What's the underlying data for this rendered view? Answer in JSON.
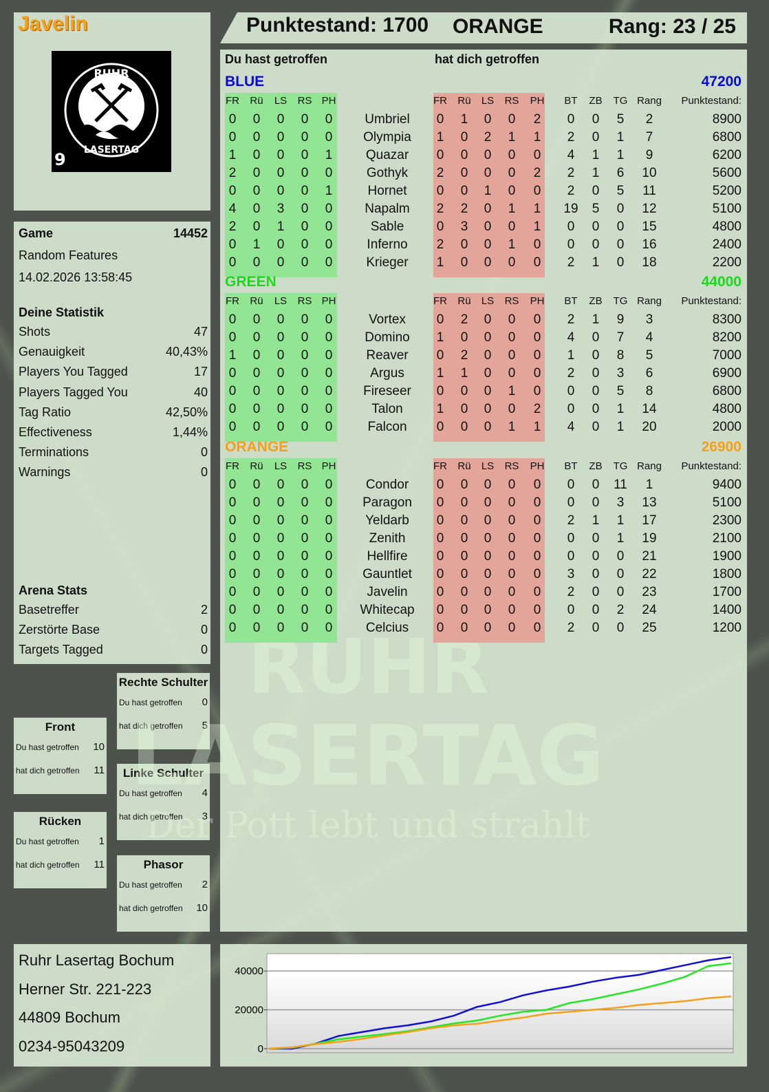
{
  "player": {
    "name": "Javelin",
    "logo_text": "RUHR LASERTAG",
    "logo_number": "9"
  },
  "header": {
    "score": "Punktestand: 1700",
    "team": "ORANGE",
    "rank": "Rang: 23 / 25"
  },
  "game": {
    "label": "Game",
    "id": "14452",
    "mode": "Random Features",
    "datetime": "14.02.2026 13:58:45"
  },
  "stats": {
    "title": "Deine Statistik",
    "items": [
      {
        "label": "Shots",
        "value": "47"
      },
      {
        "label": "Genauigkeit",
        "value": "40,43%"
      },
      {
        "label": "Players You Tagged",
        "value": "17"
      },
      {
        "label": "Players Tagged You",
        "value": "40"
      },
      {
        "label": "Tag Ratio",
        "value": "42,50%"
      },
      {
        "label": "Effectiveness",
        "value": "1,44%"
      },
      {
        "label": "Terminations",
        "value": "0"
      },
      {
        "label": "Warnings",
        "value": "0"
      }
    ]
  },
  "arena": {
    "title": "Arena Stats",
    "items": [
      {
        "label": "Basetreffer",
        "value": "2"
      },
      {
        "label": "Zerstörte Base",
        "value": "0"
      },
      {
        "label": "Targets Tagged",
        "value": "0"
      }
    ]
  },
  "zones": [
    {
      "title": "Rechte Schulter",
      "hit": "Du hast getroffen",
      "hit_v": "0",
      "got": "hat dich getroffen",
      "got_v": "5"
    },
    {
      "title": "Front",
      "hit": "Du hast getroffen",
      "hit_v": "10",
      "got": "hat dich getroffen",
      "got_v": "11"
    },
    {
      "title": "Linke Schulter",
      "hit": "Du hast getroffen",
      "hit_v": "4",
      "got": "hat dich getroffen",
      "got_v": "3"
    },
    {
      "title": "Rücken",
      "hit": "Du hast getroffen",
      "hit_v": "1",
      "got": "hat dich getroffen",
      "got_v": "11"
    },
    {
      "title": "Phasor",
      "hit": "Du hast getroffen",
      "hit_v": "2",
      "got": "hat dich getroffen",
      "got_v": "10"
    }
  ],
  "address": [
    "Ruhr Lasertag Bochum",
    "Herner Str. 221-223",
    "44809 Bochum",
    "0234-95043209"
  ],
  "main": {
    "you_hit": "Du hast getroffen",
    "hit_you": "hat dich getroffen",
    "columns": [
      "FR",
      "Rü",
      "LS",
      "RS",
      "PH",
      "FR",
      "Rü",
      "LS",
      "RS",
      "PH",
      "BT",
      "ZB",
      "TG",
      "Rang",
      "Punktestand:"
    ],
    "teams": [
      {
        "name": "BLUE",
        "total": "47200",
        "color": "#0a0ad8",
        "rows": [
          [
            "0",
            "0",
            "0",
            "0",
            "0",
            "Umbriel",
            "0",
            "1",
            "0",
            "0",
            "2",
            "0",
            "0",
            "5",
            "2",
            "8900"
          ],
          [
            "0",
            "0",
            "0",
            "0",
            "0",
            "Olympia",
            "1",
            "0",
            "2",
            "1",
            "1",
            "2",
            "0",
            "1",
            "7",
            "6800"
          ],
          [
            "1",
            "0",
            "0",
            "0",
            "1",
            "Quazar",
            "0",
            "0",
            "0",
            "0",
            "0",
            "4",
            "1",
            "1",
            "9",
            "6200"
          ],
          [
            "2",
            "0",
            "0",
            "0",
            "0",
            "Gothyk",
            "2",
            "0",
            "0",
            "0",
            "2",
            "2",
            "1",
            "6",
            "10",
            "5600"
          ],
          [
            "0",
            "0",
            "0",
            "0",
            "1",
            "Hornet",
            "0",
            "0",
            "1",
            "0",
            "0",
            "2",
            "0",
            "5",
            "11",
            "5200"
          ],
          [
            "4",
            "0",
            "3",
            "0",
            "0",
            "Napalm",
            "2",
            "2",
            "0",
            "1",
            "1",
            "19",
            "5",
            "0",
            "12",
            "5100"
          ],
          [
            "2",
            "0",
            "1",
            "0",
            "0",
            "Sable",
            "0",
            "3",
            "0",
            "0",
            "1",
            "0",
            "0",
            "0",
            "15",
            "4800"
          ],
          [
            "0",
            "1",
            "0",
            "0",
            "0",
            "Inferno",
            "2",
            "0",
            "0",
            "1",
            "0",
            "0",
            "0",
            "0",
            "16",
            "2400"
          ],
          [
            "0",
            "0",
            "0",
            "0",
            "0",
            "Krieger",
            "1",
            "0",
            "0",
            "0",
            "0",
            "2",
            "1",
            "0",
            "18",
            "2200"
          ]
        ]
      },
      {
        "name": "GREEN",
        "total": "44000",
        "color": "#1ed81e",
        "rows": [
          [
            "0",
            "0",
            "0",
            "0",
            "0",
            "Vortex",
            "0",
            "2",
            "0",
            "0",
            "0",
            "2",
            "1",
            "9",
            "3",
            "8300"
          ],
          [
            "0",
            "0",
            "0",
            "0",
            "0",
            "Domino",
            "1",
            "0",
            "0",
            "0",
            "0",
            "4",
            "0",
            "7",
            "4",
            "8200"
          ],
          [
            "1",
            "0",
            "0",
            "0",
            "0",
            "Reaver",
            "0",
            "2",
            "0",
            "0",
            "0",
            "1",
            "0",
            "8",
            "5",
            "7000"
          ],
          [
            "0",
            "0",
            "0",
            "0",
            "0",
            "Argus",
            "1",
            "1",
            "0",
            "0",
            "0",
            "2",
            "0",
            "3",
            "6",
            "6900"
          ],
          [
            "0",
            "0",
            "0",
            "0",
            "0",
            "Fireseer",
            "0",
            "0",
            "0",
            "1",
            "0",
            "0",
            "0",
            "5",
            "8",
            "6800"
          ],
          [
            "0",
            "0",
            "0",
            "0",
            "0",
            "Talon",
            "1",
            "0",
            "0",
            "0",
            "2",
            "0",
            "0",
            "1",
            "14",
            "4800"
          ],
          [
            "0",
            "0",
            "0",
            "0",
            "0",
            "Falcon",
            "0",
            "0",
            "0",
            "1",
            "1",
            "4",
            "0",
            "1",
            "20",
            "2000"
          ]
        ]
      },
      {
        "name": "ORANGE",
        "total": "26900",
        "color": "#f5a01a",
        "rows": [
          [
            "0",
            "0",
            "0",
            "0",
            "0",
            "Condor",
            "0",
            "0",
            "0",
            "0",
            "0",
            "0",
            "0",
            "11",
            "1",
            "9400"
          ],
          [
            "0",
            "0",
            "0",
            "0",
            "0",
            "Paragon",
            "0",
            "0",
            "0",
            "0",
            "0",
            "0",
            "0",
            "3",
            "13",
            "5100"
          ],
          [
            "0",
            "0",
            "0",
            "0",
            "0",
            "Yeldarb",
            "0",
            "0",
            "0",
            "0",
            "0",
            "2",
            "1",
            "1",
            "17",
            "2300"
          ],
          [
            "0",
            "0",
            "0",
            "0",
            "0",
            "Zenith",
            "0",
            "0",
            "0",
            "0",
            "0",
            "0",
            "0",
            "1",
            "19",
            "2100"
          ],
          [
            "0",
            "0",
            "0",
            "0",
            "0",
            "Hellfire",
            "0",
            "0",
            "0",
            "0",
            "0",
            "0",
            "0",
            "0",
            "21",
            "1900"
          ],
          [
            "0",
            "0",
            "0",
            "0",
            "0",
            "Gauntlet",
            "0",
            "0",
            "0",
            "0",
            "0",
            "3",
            "0",
            "0",
            "22",
            "1800"
          ],
          [
            "0",
            "0",
            "0",
            "0",
            "0",
            "Javelin",
            "0",
            "0",
            "0",
            "0",
            "0",
            "2",
            "0",
            "0",
            "23",
            "1700"
          ],
          [
            "0",
            "0",
            "0",
            "0",
            "0",
            "Whitecap",
            "0",
            "0",
            "0",
            "0",
            "0",
            "0",
            "0",
            "2",
            "24",
            "1400"
          ],
          [
            "0",
            "0",
            "0",
            "0",
            "0",
            "Celcius",
            "0",
            "0",
            "0",
            "0",
            "0",
            "2",
            "0",
            "0",
            "25",
            "1200"
          ]
        ]
      }
    ]
  },
  "watermark": {
    "line1": "RUHR",
    "line2": "LASERTAG",
    "slogan": "Der Pott lebt und strahlt"
  },
  "chart_data": {
    "type": "line",
    "ylim": [
      0,
      48000
    ],
    "yticks": [
      "0",
      "20000",
      "40000"
    ],
    "x": [
      0,
      1,
      2,
      3,
      4,
      5,
      6,
      7,
      8,
      9,
      10,
      11,
      12,
      13,
      14,
      15,
      16,
      17,
      18,
      19,
      20
    ],
    "series": [
      {
        "color": "#1010d8",
        "values": [
          0,
          0,
          2500,
          6500,
          8500,
          10500,
          12000,
          14000,
          17000,
          21500,
          24000,
          27500,
          30000,
          32000,
          34500,
          36500,
          38000,
          40500,
          43000,
          45500,
          47200
        ]
      },
      {
        "color": "#22e822",
        "values": [
          0,
          500,
          2500,
          4800,
          6200,
          7500,
          9000,
          11000,
          13000,
          14500,
          17000,
          19000,
          20000,
          23500,
          25500,
          28000,
          30500,
          33500,
          37000,
          42500,
          44000
        ]
      },
      {
        "color": "#f5a01a",
        "values": [
          0,
          700,
          2300,
          3500,
          5000,
          6800,
          8500,
          10500,
          12000,
          12800,
          14500,
          16000,
          18000,
          19000,
          20000,
          21000,
          22500,
          23500,
          24500,
          26000,
          26900
        ]
      }
    ]
  }
}
